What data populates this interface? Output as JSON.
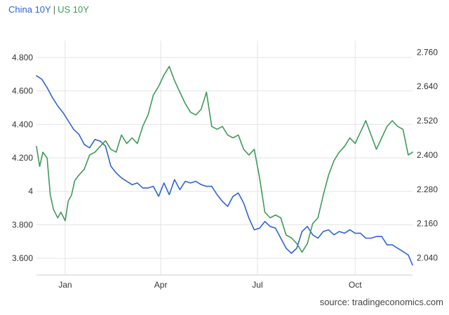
{
  "legend": {
    "china_label": "China 10Y",
    "separator": "|",
    "us_label": "US 10Y"
  },
  "source": "source: tradingeconomics.com",
  "chart_data": {
    "type": "line",
    "title": "",
    "legend_placement": "top-left",
    "grid": true,
    "x_ticks": [
      "Jan",
      "Apr",
      "Jul",
      "Oct"
    ],
    "x_range_days": [
      0,
      354
    ],
    "x_tick_days": [
      27,
      117,
      208,
      300
    ],
    "y_left": {
      "range": [
        3.5,
        4.9
      ],
      "ticks": [
        3.6,
        3.8,
        4.0,
        4.2,
        4.4,
        4.6,
        4.8
      ],
      "tick_labels": [
        "3.600",
        "3.800",
        "4",
        "4.200",
        "4.400",
        "4.600",
        "4.800"
      ]
    },
    "y_right": {
      "range": [
        1.98,
        2.8
      ],
      "ticks": [
        2.04,
        2.16,
        2.28,
        2.4,
        2.52,
        2.64,
        2.76
      ],
      "tick_labels": [
        "2.040",
        "2.160",
        "2.280",
        "2.400",
        "2.520",
        "2.640",
        "2.760"
      ]
    },
    "series": [
      {
        "name": "China 10Y",
        "axis": "left",
        "color": "#2f63d6",
        "x": [
          0,
          5,
          10,
          15,
          20,
          25,
          30,
          35,
          40,
          45,
          50,
          55,
          60,
          65,
          70,
          75,
          80,
          85,
          90,
          95,
          100,
          105,
          110,
          115,
          120,
          125,
          130,
          135,
          140,
          145,
          150,
          155,
          160,
          165,
          170,
          175,
          180,
          185,
          190,
          195,
          200,
          205,
          210,
          215,
          220,
          225,
          230,
          235,
          240,
          245,
          250,
          255,
          260,
          265,
          270,
          275,
          280,
          285,
          290,
          295,
          300,
          305,
          310,
          315,
          320,
          325,
          330,
          335,
          340,
          345,
          350,
          354
        ],
        "values": [
          4.69,
          4.67,
          4.62,
          4.56,
          4.51,
          4.47,
          4.42,
          4.37,
          4.34,
          4.28,
          4.26,
          4.31,
          4.3,
          4.27,
          4.15,
          4.11,
          4.08,
          4.06,
          4.04,
          4.05,
          4.02,
          4.02,
          4.03,
          3.97,
          4.05,
          3.98,
          4.07,
          4.01,
          4.06,
          4.05,
          4.06,
          4.04,
          4.03,
          4.03,
          3.98,
          3.94,
          3.91,
          3.97,
          3.99,
          3.93,
          3.84,
          3.77,
          3.78,
          3.82,
          3.79,
          3.78,
          3.72,
          3.66,
          3.63,
          3.66,
          3.76,
          3.79,
          3.74,
          3.72,
          3.76,
          3.77,
          3.74,
          3.76,
          3.75,
          3.77,
          3.75,
          3.75,
          3.72,
          3.72,
          3.73,
          3.73,
          3.68,
          3.68,
          3.66,
          3.64,
          3.62,
          3.56
        ]
      },
      {
        "name": "US 10Y",
        "axis": "right",
        "color": "#3f9a5a",
        "x": [
          0,
          3,
          6,
          10,
          13,
          16,
          20,
          23,
          27,
          30,
          33,
          36,
          40,
          45,
          50,
          55,
          60,
          65,
          70,
          75,
          80,
          85,
          90,
          95,
          100,
          105,
          110,
          115,
          120,
          125,
          130,
          135,
          140,
          145,
          150,
          155,
          160,
          165,
          170,
          175,
          180,
          185,
          190,
          195,
          200,
          205,
          210,
          215,
          220,
          225,
          230,
          235,
          240,
          245,
          250,
          255,
          260,
          265,
          270,
          275,
          280,
          285,
          290,
          295,
          300,
          305,
          310,
          315,
          320,
          325,
          330,
          335,
          340,
          345,
          350,
          354
        ],
        "values": [
          2.43,
          2.36,
          2.41,
          2.39,
          2.26,
          2.21,
          2.18,
          2.2,
          2.17,
          2.24,
          2.26,
          2.31,
          2.33,
          2.35,
          2.4,
          2.41,
          2.43,
          2.45,
          2.42,
          2.41,
          2.47,
          2.44,
          2.46,
          2.44,
          2.5,
          2.54,
          2.61,
          2.64,
          2.68,
          2.71,
          2.66,
          2.62,
          2.58,
          2.55,
          2.54,
          2.56,
          2.62,
          2.5,
          2.49,
          2.5,
          2.47,
          2.46,
          2.47,
          2.42,
          2.4,
          2.42,
          2.32,
          2.2,
          2.18,
          2.19,
          2.18,
          2.12,
          2.11,
          2.09,
          2.06,
          2.09,
          2.16,
          2.18,
          2.26,
          2.33,
          2.38,
          2.41,
          2.43,
          2.46,
          2.44,
          2.48,
          2.52,
          2.47,
          2.42,
          2.46,
          2.5,
          2.52,
          2.5,
          2.49,
          2.4,
          2.41
        ]
      }
    ]
  }
}
